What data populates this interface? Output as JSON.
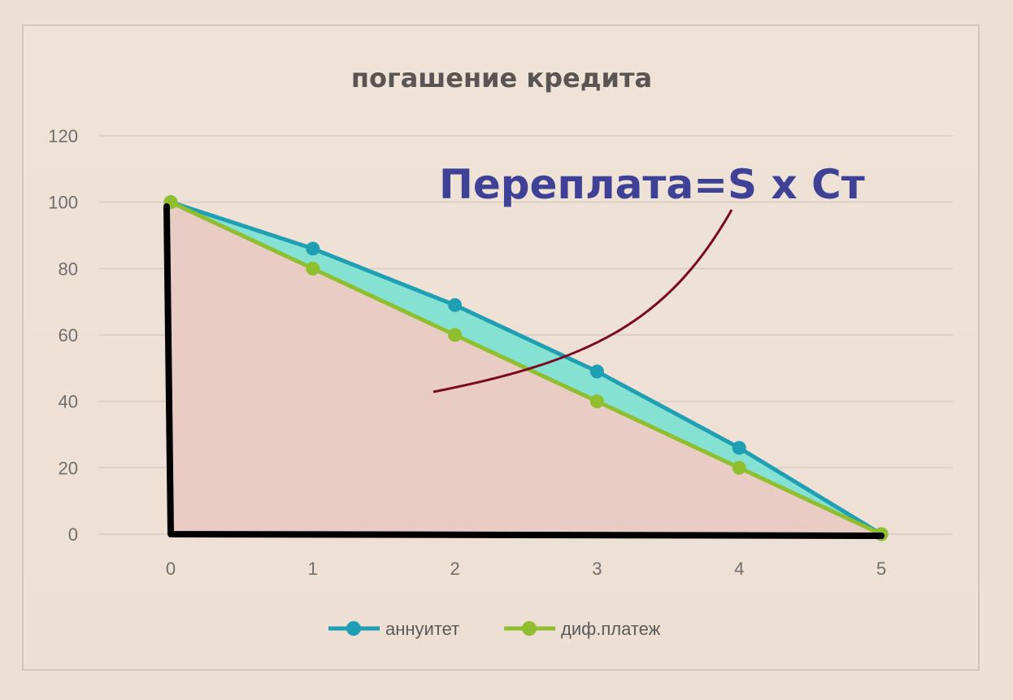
{
  "chart_data": {
    "type": "line",
    "title": "погашение кредита",
    "x": [
      0,
      1,
      2,
      3,
      4,
      5
    ],
    "xlim": [
      0,
      5
    ],
    "ylim": [
      0,
      120
    ],
    "yticks": [
      0,
      20,
      40,
      60,
      80,
      100,
      120
    ],
    "grid": true,
    "legend_position": "bottom",
    "series": [
      {
        "name": "аннуитет",
        "values": [
          100,
          86,
          69,
          49,
          26,
          0
        ],
        "color": "#1f9fb3"
      },
      {
        "name": "диф.платеж",
        "values": [
          100,
          80,
          60,
          40,
          20,
          0
        ],
        "color": "#8fbf2f"
      }
    ],
    "fills": {
      "under_lower": "#e9ccc4",
      "between": "#85e1d2"
    },
    "annotation": {
      "text": "Переплата=S x Ст",
      "color": "#3e4195",
      "arrow_color": "#7a0b1e"
    },
    "axes_emphasis_color": "#000000"
  }
}
